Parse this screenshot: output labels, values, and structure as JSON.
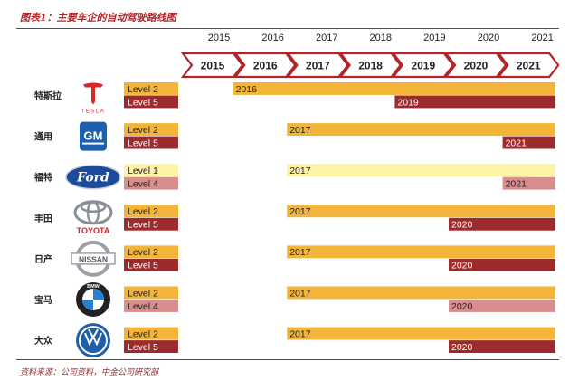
{
  "title": "图表1：主要车企的自动驾驶路线图",
  "source": "资料来源：公司资料，中金公司研究部",
  "colors": {
    "accent": "#b0262a",
    "level_high": "#f2b53a",
    "level_high_light": "#fdf3a6",
    "level_low": "#9c2b2e",
    "level_low_light": "#d98e8e",
    "chevron_border": "#b0262a"
  },
  "chart_data": {
    "type": "gantt",
    "years": [
      "2015",
      "2016",
      "2017",
      "2018",
      "2019",
      "2020",
      "2021"
    ],
    "chevron_years": [
      "2015",
      "2016",
      "2017",
      "2018",
      "2019",
      "2020",
      "2021"
    ],
    "x_range": [
      2015,
      2022
    ],
    "makers": [
      {
        "name": "特斯拉",
        "logo": "tesla-logo",
        "logo_text": "TESLA",
        "bars": [
          {
            "level": "Level 2",
            "start": 2016,
            "label": "2016",
            "tone": "high"
          },
          {
            "level": "Level 5",
            "start": 2019,
            "label": "2019",
            "tone": "low"
          }
        ]
      },
      {
        "name": "通用",
        "logo": "gm-logo",
        "logo_text": "GM",
        "bars": [
          {
            "level": "Level 2",
            "start": 2017,
            "label": "2017",
            "tone": "high"
          },
          {
            "level": "Level 5",
            "start": 2021,
            "label": "2021",
            "tone": "low"
          }
        ]
      },
      {
        "name": "福特",
        "logo": "ford-logo",
        "logo_text": "Ford",
        "bars": [
          {
            "level": "Level 1",
            "start": 2017,
            "label": "2017",
            "tone": "high_light"
          },
          {
            "level": "Level 4",
            "start": 2021,
            "label": "2021",
            "tone": "low_light"
          }
        ]
      },
      {
        "name": "丰田",
        "logo": "toyota-logo",
        "logo_text": "TOYOTA",
        "bars": [
          {
            "level": "Level 2",
            "start": 2017,
            "label": "2017",
            "tone": "high"
          },
          {
            "level": "Level 5",
            "start": 2020,
            "label": "2020",
            "tone": "low"
          }
        ]
      },
      {
        "name": "日产",
        "logo": "nissan-logo",
        "logo_text": "NISSAN",
        "bars": [
          {
            "level": "Level 2",
            "start": 2017,
            "label": "2017",
            "tone": "high"
          },
          {
            "level": "Level 5",
            "start": 2020,
            "label": "2020",
            "tone": "low"
          }
        ]
      },
      {
        "name": "宝马",
        "logo": "bmw-logo",
        "logo_text": "BMW",
        "bars": [
          {
            "level": "Level 2",
            "start": 2017,
            "label": "2017",
            "tone": "high"
          },
          {
            "level": "Level 4",
            "start": 2020,
            "label": "2020",
            "tone": "low_light"
          }
        ]
      },
      {
        "name": "大众",
        "logo": "vw-logo",
        "logo_text": "",
        "bars": [
          {
            "level": "Level 2",
            "start": 2017,
            "label": "2017",
            "tone": "high"
          },
          {
            "level": "Level 5",
            "start": 2020,
            "label": "2020",
            "tone": "low"
          }
        ]
      }
    ]
  }
}
